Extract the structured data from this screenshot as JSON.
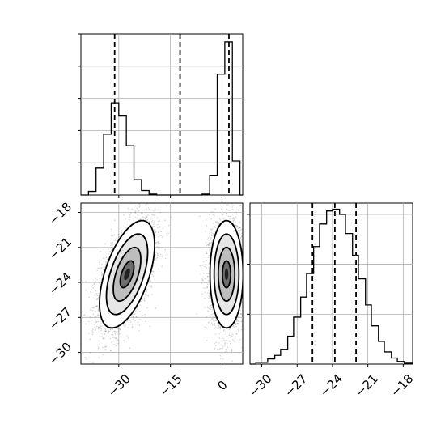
{
  "chart_data": [
    {
      "type": "histogram",
      "panel": "top-left",
      "variable": "x",
      "xlim": [
        -41,
        6
      ],
      "bins": [
        {
          "x0": -41,
          "x1": -38.8,
          "count": 0
        },
        {
          "x0": -38.8,
          "x1": -36.6,
          "count": 4
        },
        {
          "x0": -36.6,
          "x1": -34.4,
          "count": 30
        },
        {
          "x0": -34.4,
          "x1": -32.2,
          "count": 68
        },
        {
          "x0": -32.2,
          "x1": -30.0,
          "count": 103
        },
        {
          "x0": -30.0,
          "x1": -27.8,
          "count": 89
        },
        {
          "x0": -27.8,
          "x1": -25.6,
          "count": 55
        },
        {
          "x0": -25.6,
          "x1": -23.4,
          "count": 17
        },
        {
          "x0": -23.4,
          "x1": -21.2,
          "count": 5
        },
        {
          "x0": -21.2,
          "x1": -19.0,
          "count": 1
        },
        {
          "x0": -19.0,
          "x1": -16.8,
          "count": 0
        },
        {
          "x0": -16.8,
          "x1": -14.6,
          "count": 0
        },
        {
          "x0": -14.6,
          "x1": -12.4,
          "count": 0
        },
        {
          "x0": -12.4,
          "x1": -10.2,
          "count": 0
        },
        {
          "x0": -10.2,
          "x1": -8.0,
          "count": 0
        },
        {
          "x0": -8.0,
          "x1": -5.8,
          "count": 0
        },
        {
          "x0": -5.8,
          "x1": -3.6,
          "count": 1
        },
        {
          "x0": -3.6,
          "x1": -1.4,
          "count": 22
        },
        {
          "x0": -1.4,
          "x1": 0.8,
          "count": 135
        },
        {
          "x0": 0.8,
          "x1": 3.0,
          "count": 171
        },
        {
          "x0": 3.0,
          "x1": 5.2,
          "count": 38
        },
        {
          "x0": 5.2,
          "x1": 6.0,
          "count": 0
        }
      ],
      "ylim": [
        0,
        180
      ],
      "quantile_lines": [
        -31.2,
        -12.2,
        2.0
      ]
    },
    {
      "type": "scatter-density",
      "panel": "bottom-left",
      "xlim": [
        -41,
        6
      ],
      "ylim": [
        -31,
        -17.2
      ],
      "x_ticks": [
        -30,
        -15,
        0
      ],
      "y_ticks": [
        -18,
        -21,
        -24,
        -27,
        -30
      ],
      "clusters": [
        {
          "center": [
            -27.6,
            -23.3
          ],
          "sigma": [
            4.0,
            2.3
          ],
          "corr": 0.55,
          "n": 3300
        },
        {
          "center": [
            1.3,
            -23.3
          ],
          "sigma": [
            2.4,
            2.3
          ],
          "corr": 0.0,
          "n": 3300
        }
      ]
    },
    {
      "type": "histogram",
      "panel": "bottom-right",
      "variable": "y",
      "xlim": [
        -31,
        -17.2
      ],
      "x_ticks": [
        -30,
        -27,
        -24,
        -21,
        -18
      ],
      "bins": [
        {
          "x0": -31.0,
          "x1": -30.5,
          "count": 0
        },
        {
          "x0": -30.5,
          "x1": -29.5,
          "count": 2
        },
        {
          "x0": -29.5,
          "x1": -28.9,
          "count": 6
        },
        {
          "x0": -28.9,
          "x1": -28.4,
          "count": 10
        },
        {
          "x0": -28.4,
          "x1": -27.8,
          "count": 17
        },
        {
          "x0": -27.8,
          "x1": -27.3,
          "count": 32
        },
        {
          "x0": -27.3,
          "x1": -26.7,
          "count": 54
        },
        {
          "x0": -26.7,
          "x1": -26.2,
          "count": 77
        },
        {
          "x0": -26.2,
          "x1": -25.6,
          "count": 104
        },
        {
          "x0": -25.6,
          "x1": -25.1,
          "count": 135
        },
        {
          "x0": -25.1,
          "x1": -24.5,
          "count": 161
        },
        {
          "x0": -24.5,
          "x1": -24.0,
          "count": 176
        },
        {
          "x0": -24.0,
          "x1": -23.4,
          "count": 178
        },
        {
          "x0": -23.4,
          "x1": -22.9,
          "count": 172
        },
        {
          "x0": -22.9,
          "x1": -22.3,
          "count": 150
        },
        {
          "x0": -22.3,
          "x1": -21.8,
          "count": 125
        },
        {
          "x0": -21.8,
          "x1": -21.2,
          "count": 98
        },
        {
          "x0": -21.2,
          "x1": -20.7,
          "count": 68
        },
        {
          "x0": -20.7,
          "x1": -20.1,
          "count": 44
        },
        {
          "x0": -20.1,
          "x1": -19.6,
          "count": 26
        },
        {
          "x0": -19.6,
          "x1": -19.0,
          "count": 14
        },
        {
          "x0": -19.0,
          "x1": -18.5,
          "count": 7
        },
        {
          "x0": -18.5,
          "x1": -17.9,
          "count": 3
        },
        {
          "x0": -17.9,
          "x1": -17.2,
          "count": 1
        }
      ],
      "ylim": [
        0,
        185
      ],
      "quantile_lines": [
        -25.7,
        -23.8,
        -22.0
      ]
    }
  ]
}
